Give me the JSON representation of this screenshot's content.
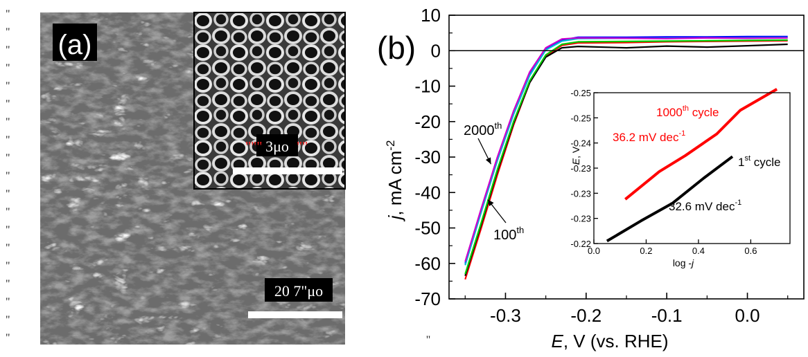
{
  "panel_a": {
    "label": "(a)",
    "inset_scale_label": "3μo",
    "main_scale_label": "20 7\"μo",
    "stray_marks": [
      "\"",
      "\"",
      "\"",
      "\"",
      "\"",
      "\"",
      "\"",
      "\"",
      "\"",
      "\"",
      "\"",
      "\"",
      "\"",
      "\"",
      "\"",
      "\"",
      "\"",
      "\"",
      "\""
    ]
  },
  "panel_b": {
    "label": "(b)",
    "stray_mark": "\""
  },
  "chart_data": [
    {
      "type": "line",
      "xlabel_italic": "E",
      "xlabel_rest": ", V (vs. RHE)",
      "ylabel_italic": "j",
      "ylabel_rest": ", mA cm",
      "ylabel_sup": "-2",
      "xlim": [
        -0.37,
        0.07
      ],
      "ylim": [
        -70,
        10
      ],
      "x_ticks": [
        -0.3,
        -0.2,
        -0.1,
        0.0
      ],
      "x_tick_labels": [
        "-0.3",
        "-0.2",
        "-0.1",
        "0.0"
      ],
      "y_ticks": [
        -70,
        -60,
        -50,
        -40,
        -30,
        -20,
        -10,
        0,
        10
      ],
      "y_tick_labels": [
        "-70",
        "-60",
        "-50",
        "-40",
        "-30",
        "-20",
        "-10",
        "0",
        "10"
      ],
      "zero_line": 0,
      "annotations": [
        {
          "text": "2000",
          "sup": "th",
          "arrow_to": [
            -0.318,
            -32
          ]
        },
        {
          "text": "100",
          "sup": "th",
          "arrow_to": [
            -0.322,
            -42
          ]
        }
      ],
      "series": [
        {
          "color": "#ff0000",
          "x": [
            -0.35,
            -0.33,
            -0.31,
            -0.29,
            -0.27,
            -0.25,
            -0.23,
            -0.21,
            -0.15,
            -0.1,
            -0.05,
            0.0,
            0.05
          ],
          "y": [
            -64.5,
            -50,
            -35,
            -21,
            -9,
            -1.5,
            1.5,
            2.2,
            2.3,
            2.5,
            2.6,
            2.7,
            2.8
          ]
        },
        {
          "color": "#000000",
          "x": [
            -0.35,
            -0.33,
            -0.31,
            -0.29,
            -0.27,
            -0.25,
            -0.23,
            -0.21,
            -0.15,
            -0.1,
            -0.05,
            0.0,
            0.05
          ],
          "y": [
            -63.5,
            -49,
            -34,
            -20.5,
            -9,
            -1.8,
            0.8,
            1.2,
            0.8,
            1.3,
            1.0,
            1.4,
            1.8
          ]
        },
        {
          "color": "#00cc00",
          "x": [
            -0.35,
            -0.33,
            -0.31,
            -0.29,
            -0.27,
            -0.25,
            -0.23,
            -0.21,
            -0.15,
            -0.1,
            -0.05,
            0.0,
            0.05
          ],
          "y": [
            -63,
            -48.5,
            -33.5,
            -20,
            -8.5,
            -1.2,
            1.8,
            2.5,
            2.6,
            2.7,
            2.8,
            2.9,
            3.0
          ]
        },
        {
          "color": "#0000ff",
          "x": [
            -0.35,
            -0.33,
            -0.31,
            -0.29,
            -0.27,
            -0.25,
            -0.23,
            -0.21,
            -0.15,
            -0.1,
            -0.05,
            0.0,
            0.05
          ],
          "y": [
            -60,
            -45,
            -30.5,
            -17.5,
            -6.5,
            0.5,
            3.0,
            3.8,
            3.8,
            3.9,
            3.9,
            4.0,
            4.0
          ]
        },
        {
          "color": "#00bcd4",
          "x": [
            -0.35,
            -0.33,
            -0.31,
            -0.29,
            -0.27,
            -0.25,
            -0.23,
            -0.21,
            -0.15,
            -0.1,
            -0.05,
            0.0,
            0.05
          ],
          "y": [
            -60.5,
            -45.5,
            -31,
            -18,
            -7,
            0.2,
            2.7,
            3.4,
            3.5,
            3.5,
            3.6,
            3.6,
            3.7
          ]
        },
        {
          "color": "#cc00cc",
          "x": [
            -0.35,
            -0.33,
            -0.31,
            -0.29,
            -0.27,
            -0.25,
            -0.23,
            -0.21,
            -0.15,
            -0.1,
            -0.05,
            0.0,
            0.05
          ],
          "y": [
            -59.5,
            -44.5,
            -30,
            -17,
            -6,
            0.8,
            3.3,
            3.6,
            3.5,
            3.4,
            3.6,
            3.5,
            3.6
          ]
        }
      ]
    },
    {
      "type": "line",
      "xlabel": "log -",
      "xlabel_italic": "j",
      "ylabel_italic": "E",
      "ylabel_rest": ", V",
      "xlim": [
        0.0,
        0.75
      ],
      "ylim": [
        -0.22,
        -0.25
      ],
      "x_ticks": [
        0.0,
        0.2,
        0.4,
        0.6
      ],
      "x_tick_labels": [
        "0.0",
        "0.2",
        "0.4",
        "0.6"
      ],
      "y_tick_labels": [
        "-0.25",
        "-0.25",
        "-0.24",
        "-0.23",
        "-0.23",
        "-0.23",
        "-0.22"
      ],
      "annotations": [
        {
          "text": "1000",
          "sup": "th",
          "rest": " cycle",
          "color": "#ff0000"
        },
        {
          "text": "36.2 mV dec",
          "sup": "-1",
          "color": "#ff0000"
        },
        {
          "text": "1",
          "sup": "st",
          "rest": " cycle",
          "color": "#000000"
        },
        {
          "text": "32.6 mV dec",
          "sup": "-1",
          "color": "#000000"
        }
      ],
      "series": [
        {
          "color": "#ff0000",
          "x": [
            0.12,
            0.25,
            0.35,
            0.47,
            0.56,
            0.7
          ],
          "y": [
            -0.2288,
            -0.2343,
            -0.2375,
            -0.2418,
            -0.2465,
            -0.2507
          ]
        },
        {
          "color": "#000000",
          "x": [
            0.05,
            0.18,
            0.3,
            0.42,
            0.53
          ],
          "y": [
            -0.2205,
            -0.2245,
            -0.228,
            -0.233,
            -0.2373
          ]
        }
      ]
    }
  ]
}
